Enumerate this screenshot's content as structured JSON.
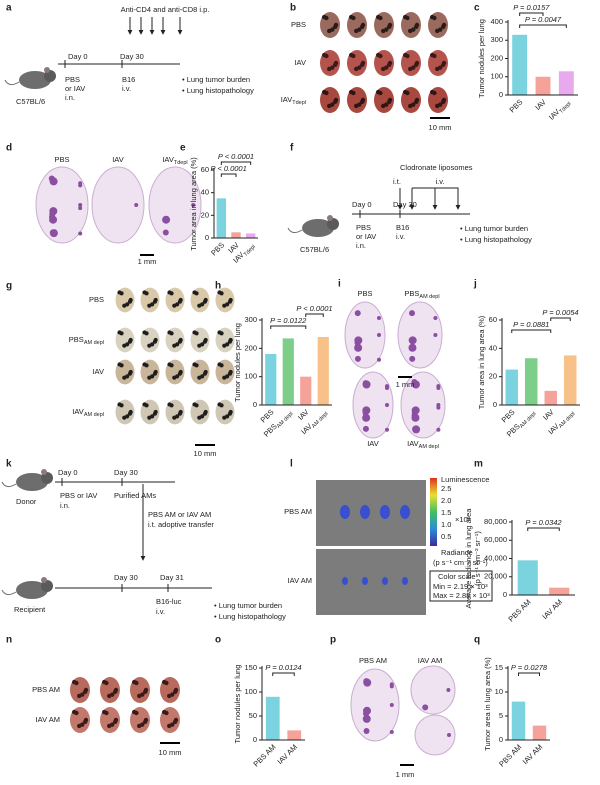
{
  "panels": [
    {
      "label": "a",
      "texts": [
        "Anti-CD4 and anti-CD8 i.p.",
        "Day 0",
        "Day 30",
        "PBS",
        "or IAV",
        "i.n.",
        "B16",
        "i.v.",
        "C57BL/6",
        "• Lung tumor burden",
        "• Lung histopathology"
      ]
    },
    {
      "label": "b",
      "texts": [
        "PBS",
        "IAV",
        {
          "text": "IAV",
          "sub": "Tdepl"
        },
        "10 mm"
      ]
    },
    {
      "label": "d",
      "texts": [
        "PBS",
        "IAV",
        {
          "text": "IAV",
          "sub": "Tdepl"
        },
        "1 mm"
      ]
    },
    {
      "label": "f",
      "texts": [
        "Clodronate liposomes",
        "i.t.",
        "i.v.",
        "Day 0",
        "Day 30",
        "PBS",
        "or IAV",
        "i.n.",
        "B16",
        "i.v.",
        "C57BL/6",
        "• Lung tumor burden",
        "• Lung histopathology"
      ]
    },
    {
      "label": "g",
      "texts": [
        "PBS",
        {
          "text": "PBS",
          "sub": "AM depl"
        },
        "IAV",
        {
          "text": "IAV",
          "sub": "AM depl"
        },
        "10 mm"
      ]
    },
    {
      "label": "i",
      "texts": [
        "PBS",
        {
          "text": "PBS",
          "sub": "AM depl"
        },
        "IAV",
        {
          "text": "IAV",
          "sub": "AM depl"
        },
        "1 mm"
      ]
    },
    {
      "label": "k",
      "texts": [
        "Day 0",
        "Day 30",
        "Donor",
        "PBS or IAV",
        "i.n.",
        "Purified AMs",
        "PBS AM or IAV AM",
        "i.t. adoptive transfer",
        "Recipient",
        "Day 30",
        "Day 31",
        "B16-luc",
        "i.v.",
        "• Lung tumor burden",
        "• Lung histopathology"
      ]
    },
    {
      "label": "l",
      "texts": [
        "PBS AM",
        "IAV AM",
        "Luminescence",
        "2.5",
        "2.0",
        "1.5",
        "1.0",
        "0.5",
        "×10³",
        "Radiance",
        "(p s⁻¹ cm⁻² sr⁻¹)",
        "Color scale",
        "Min = 2.19 × 10³",
        "Max = 2.88 × 10³"
      ]
    },
    {
      "label": "n",
      "texts": [
        "PBS AM",
        "IAV AM",
        "10 mm"
      ]
    },
    {
      "label": "p",
      "texts": [
        "PBS AM",
        "IAV AM",
        "1 mm"
      ]
    }
  ],
  "chart_data": [
    {
      "label": "c",
      "type": "bar",
      "ylabel": [
        "Tumor nodules per lung"
      ],
      "categories": [
        "PBS",
        "IAV",
        "IAV"
      ],
      "category_subscripts": [
        null,
        null,
        "Tdepl"
      ],
      "values": [
        330,
        100,
        130
      ],
      "colors": [
        "#5bc8d8",
        "#f28b82",
        "#e495e8"
      ],
      "ylim": [
        0,
        400
      ],
      "yticks": [
        0,
        100,
        200,
        300,
        400
      ],
      "annotations": [
        "P = 0.0157",
        "P = 0.0047"
      ]
    },
    {
      "label": "e",
      "type": "bar",
      "ylabel": [
        "Tumor area in lung area (%)"
      ],
      "categories": [
        "PBS",
        "IAV",
        "IAV"
      ],
      "category_subscripts": [
        null,
        null,
        "Tdepl"
      ],
      "values": [
        35,
        5,
        4
      ],
      "colors": [
        "#5bc8d8",
        "#f28b82",
        "#e495e8"
      ],
      "ylim": [
        0,
        60
      ],
      "yticks": [
        0,
        20,
        40,
        60
      ],
      "annotations": [
        "P < 0.0001",
        "P < 0.0001"
      ]
    },
    {
      "label": "h",
      "type": "bar",
      "ylabel": [
        "Tumor nodules per lung"
      ],
      "categories": [
        "PBS",
        "PBS",
        "IAV",
        "IAV"
      ],
      "category_subscripts": [
        null,
        "AM depl",
        null,
        "AM depl"
      ],
      "values": [
        180,
        235,
        100,
        240
      ],
      "colors": [
        "#5bc8d8",
        "#5cc26a",
        "#f28b82",
        "#f5b26b"
      ],
      "ylim": [
        0,
        300
      ],
      "yticks": [
        0,
        100,
        200,
        300
      ],
      "annotations": [
        "P = 0.0122",
        "P < 0.0001"
      ]
    },
    {
      "label": "j",
      "type": "bar",
      "ylabel": [
        "Tumor area in lung area (%)"
      ],
      "categories": [
        "PBS",
        "PBS",
        "IAV",
        "IAV"
      ],
      "category_subscripts": [
        null,
        "AM depl",
        null,
        "AM depl"
      ],
      "values": [
        25,
        33,
        10,
        35
      ],
      "colors": [
        "#5bc8d8",
        "#5cc26a",
        "#f28b82",
        "#f5b26b"
      ],
      "ylim": [
        0,
        60
      ],
      "yticks": [
        0,
        20,
        40,
        60
      ],
      "annotations": [
        "P = 0.0881",
        "P = 0.0054"
      ]
    },
    {
      "label": "m",
      "type": "bar",
      "ylabel": [
        "Average radiance in lung area",
        "(p s⁻¹ cm⁻² sr⁻¹)"
      ],
      "categories": [
        "PBS AM",
        "IAV AM"
      ],
      "category_subscripts": [
        null,
        null
      ],
      "values": [
        38000,
        8000
      ],
      "colors": [
        "#5bc8d8",
        "#f28b82"
      ],
      "ylim": [
        0,
        80000
      ],
      "yticks": [
        0,
        {
          "value": 20000,
          "label": "20,000"
        },
        {
          "value": 40000,
          "label": "40,000"
        },
        {
          "value": 60000,
          "label": "60,000"
        },
        {
          "value": 80000,
          "label": "80,000"
        }
      ],
      "annotations": [
        "P = 0.0342"
      ]
    },
    {
      "label": "o",
      "type": "bar",
      "ylabel": [
        "Tumor nodules per lung"
      ],
      "categories": [
        "PBS AM",
        "IAV AM"
      ],
      "category_subscripts": [
        null,
        null
      ],
      "values": [
        90,
        20
      ],
      "colors": [
        "#5bc8d8",
        "#f28b82"
      ],
      "ylim": [
        0,
        150
      ],
      "yticks": [
        0,
        50,
        100,
        150
      ],
      "annotations": [
        "P = 0.0124"
      ]
    },
    {
      "label": "q",
      "type": "bar",
      "ylabel": [
        "Tumor area in lung area (%)"
      ],
      "categories": [
        "PBS AM",
        "IAV AM"
      ],
      "category_subscripts": [
        null,
        null
      ],
      "values": [
        8,
        3
      ],
      "colors": [
        "#5bc8d8",
        "#f28b82"
      ],
      "ylim": [
        0,
        15
      ],
      "yticks": [
        0,
        5,
        10,
        15
      ],
      "annotations": [
        "P = 0.0278"
      ]
    }
  ]
}
